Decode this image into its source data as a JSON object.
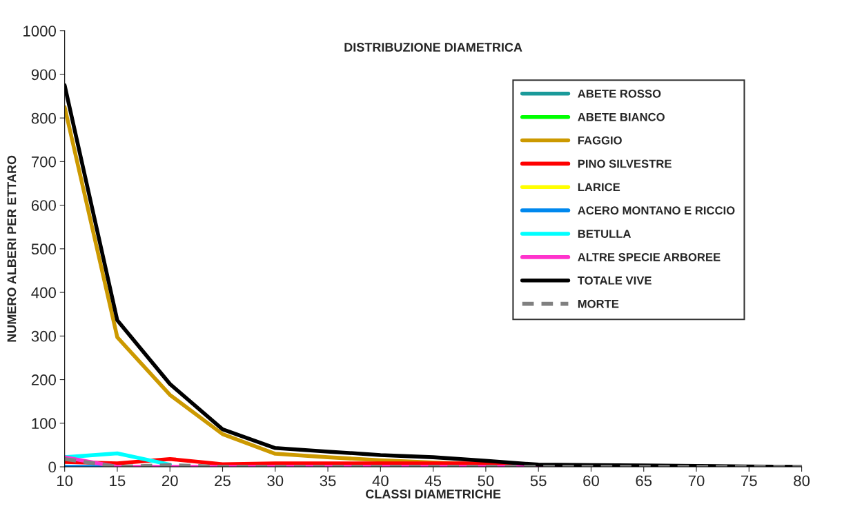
{
  "chart_data": {
    "type": "line",
    "title": "DISTRIBUZIONE DIAMETRICA",
    "xlabel": "CLASSI DIAMETRICHE",
    "ylabel": "NUMERO ALBERI PER ETTARO",
    "x": [
      10,
      15,
      20,
      25,
      30,
      35,
      40,
      45,
      50,
      55,
      60,
      65,
      70,
      75,
      80
    ],
    "xlim": [
      10,
      80
    ],
    "xticks": [
      10,
      15,
      20,
      25,
      30,
      35,
      40,
      45,
      50,
      55,
      60,
      65,
      70,
      75,
      80
    ],
    "ylim": [
      0,
      1000
    ],
    "yticks": [
      0,
      100,
      200,
      300,
      400,
      500,
      600,
      700,
      800,
      900,
      1000
    ],
    "grid": false,
    "legend": "top right",
    "marker": "none",
    "series": [
      {
        "name": "ABETE ROSSO",
        "color": "#1a9a9a",
        "values": [
          null,
          null,
          null,
          null,
          null,
          null,
          null,
          null,
          null,
          null,
          null,
          null,
          null,
          null,
          null
        ]
      },
      {
        "name": "ABETE BIANCO",
        "color": "#00ff00",
        "values": [
          null,
          null,
          null,
          null,
          null,
          null,
          null,
          null,
          null,
          null,
          null,
          null,
          null,
          null,
          null
        ]
      },
      {
        "name": "FAGGIO",
        "color": "#cc9900",
        "values": [
          825,
          297,
          165,
          75,
          30,
          22,
          15,
          10,
          5,
          null,
          null,
          null,
          null,
          null,
          null
        ]
      },
      {
        "name": "PINO SILVESTRE",
        "color": "#ff0000",
        "values": [
          11,
          8,
          18,
          6,
          8,
          8,
          8,
          8,
          8,
          0,
          null,
          null,
          null,
          null,
          null
        ]
      },
      {
        "name": "LARICE",
        "color": "#ffff00",
        "values": [
          null,
          null,
          null,
          null,
          null,
          null,
          null,
          null,
          null,
          null,
          null,
          null,
          null,
          null,
          null
        ]
      },
      {
        "name": "ACERO MONTANO E RICCIO",
        "color": "#0088ee",
        "values": [
          0,
          0,
          null,
          null,
          null,
          null,
          null,
          null,
          null,
          null,
          null,
          null,
          null,
          null,
          null
        ]
      },
      {
        "name": "BETULLA",
        "color": "#00ffff",
        "values": [
          22,
          31,
          5,
          null,
          null,
          null,
          null,
          null,
          null,
          null,
          null,
          null,
          null,
          null,
          null
        ]
      },
      {
        "name": "ALTRE SPECIE ARBOREE",
        "color": "#ff33cc",
        "values": [
          22,
          0,
          0,
          0,
          0,
          0,
          0,
          0,
          0,
          0,
          0,
          null,
          null,
          null,
          null
        ]
      },
      {
        "name": "TOTALE VIVE",
        "color": "#000000",
        "values": [
          875,
          336,
          190,
          86,
          43,
          35,
          27,
          22,
          14,
          5,
          4,
          3,
          2,
          1,
          0
        ]
      },
      {
        "name": "MORTE",
        "color": "#808080",
        "line_style": "dashed",
        "values": [
          18,
          0,
          4,
          0,
          0,
          0,
          0,
          0,
          0,
          0,
          0,
          0,
          0,
          0,
          0
        ]
      }
    ]
  }
}
